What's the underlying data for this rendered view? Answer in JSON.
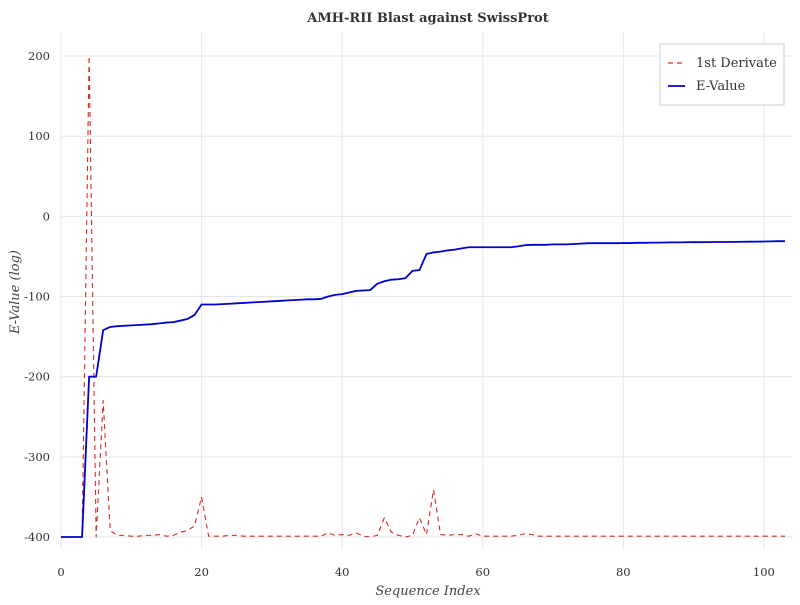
{
  "chart_data": {
    "type": "line",
    "title": "AMH-RII Blast against SwissProt",
    "xlabel": "Sequence Index",
    "ylabel": "E-Value (log)",
    "xlim": [
      0,
      104
    ],
    "ylim": [
      -415,
      230
    ],
    "x_ticks": [
      0,
      20,
      40,
      60,
      80,
      100
    ],
    "y_ticks": [
      -400,
      -300,
      -200,
      -100,
      0,
      100,
      200
    ],
    "grid": true,
    "legend_position": "top-right",
    "series": [
      {
        "name": "1st Derivate",
        "color": "#d62728",
        "style": "dashed",
        "x": [
          0,
          1,
          2,
          3,
          4,
          5,
          6,
          7,
          8,
          9,
          10,
          11,
          12,
          13,
          14,
          15,
          16,
          17,
          18,
          19,
          20,
          21,
          22,
          23,
          24,
          25,
          26,
          27,
          28,
          29,
          30,
          31,
          32,
          33,
          34,
          35,
          36,
          37,
          38,
          39,
          40,
          41,
          42,
          43,
          44,
          45,
          46,
          47,
          48,
          49,
          50,
          51,
          52,
          53,
          54,
          55,
          56,
          57,
          58,
          59,
          60,
          61,
          62,
          63,
          64,
          65,
          66,
          67,
          68,
          69,
          70,
          71,
          72,
          73,
          74,
          75,
          76,
          77,
          78,
          79,
          80,
          81,
          82,
          83,
          84,
          85,
          86,
          87,
          88,
          89,
          90,
          91,
          92,
          93,
          94,
          95,
          96,
          97,
          98,
          99,
          100,
          101,
          102,
          103
        ],
        "values": [
          -400,
          -400,
          -400,
          -400,
          200,
          -400,
          -230,
          -392,
          -398,
          -398,
          -399,
          -399,
          -398,
          -398,
          -397,
          -399,
          -398,
          -394,
          -392,
          -386,
          -350,
          -399,
          -399,
          -399,
          -398,
          -398,
          -399,
          -399,
          -399,
          -399,
          -399,
          -399,
          -399,
          -399,
          -399,
          -399,
          -399,
          -399,
          -395,
          -398,
          -397,
          -398,
          -395,
          -399,
          -400,
          -398,
          -376,
          -394,
          -398,
          -400,
          -398,
          -376,
          -397,
          -341,
          -397,
          -398,
          -397,
          -397,
          -399,
          -396,
          -399,
          -399,
          -399,
          -399,
          -399,
          -398,
          -396,
          -397,
          -399,
          -399,
          -399,
          -399,
          -399,
          -399,
          -399,
          -399,
          -399,
          -399,
          -399,
          -399,
          -399,
          -399,
          -399,
          -399,
          -399,
          -399,
          -399,
          -399,
          -399,
          -399,
          -399,
          -399,
          -399,
          -399,
          -399,
          -399,
          -399,
          -399,
          -399,
          -399,
          -399,
          -399,
          -399,
          -399
        ]
      },
      {
        "name": "E-Value",
        "color": "#0000cc",
        "style": "solid",
        "x": [
          0,
          1,
          2,
          3,
          4,
          5,
          6,
          7,
          8,
          9,
          10,
          11,
          12,
          13,
          14,
          15,
          16,
          17,
          18,
          19,
          20,
          21,
          22,
          23,
          24,
          25,
          26,
          27,
          28,
          29,
          30,
          31,
          32,
          33,
          34,
          35,
          36,
          37,
          38,
          39,
          40,
          41,
          42,
          43,
          44,
          45,
          46,
          47,
          48,
          49,
          50,
          51,
          52,
          53,
          54,
          55,
          56,
          57,
          58,
          59,
          60,
          61,
          62,
          63,
          64,
          65,
          66,
          67,
          68,
          69,
          70,
          71,
          72,
          73,
          74,
          75,
          76,
          77,
          78,
          79,
          80,
          81,
          82,
          83,
          84,
          85,
          86,
          87,
          88,
          89,
          90,
          91,
          92,
          93,
          94,
          95,
          96,
          97,
          98,
          99,
          100,
          101,
          102,
          103
        ],
        "values": [
          -400,
          -400,
          -400,
          -400,
          -200,
          -200,
          -142,
          -138,
          -137,
          -136.5,
          -136,
          -135.5,
          -135,
          -134.5,
          -133.5,
          -132.5,
          -132,
          -130,
          -128,
          -123,
          -110,
          -110,
          -110,
          -109.5,
          -109,
          -108.5,
          -108,
          -107.5,
          -107,
          -106.5,
          -106,
          -105.5,
          -105,
          -104.5,
          -104,
          -103.5,
          -103.5,
          -103,
          -100,
          -98,
          -97,
          -95,
          -93,
          -92.5,
          -92,
          -84,
          -81,
          -79,
          -78.5,
          -77,
          -68,
          -67,
          -47,
          -45,
          -44,
          -42.5,
          -41.5,
          -40,
          -38.5,
          -38.5,
          -38.5,
          -38.5,
          -38.5,
          -38.5,
          -38.5,
          -37.5,
          -36,
          -35.5,
          -35.5,
          -35.5,
          -35,
          -35,
          -35,
          -34.5,
          -34,
          -33.5,
          -33.5,
          -33.5,
          -33.5,
          -33.5,
          -33.3,
          -33.3,
          -33,
          -33,
          -32.8,
          -32.8,
          -32.6,
          -32.5,
          -32.5,
          -32.3,
          -32.2,
          -32.2,
          -32.1,
          -32,
          -32,
          -32,
          -31.8,
          -31.7,
          -31.6,
          -31.5,
          -31.4,
          -31.2,
          -31,
          -31
        ]
      }
    ]
  }
}
